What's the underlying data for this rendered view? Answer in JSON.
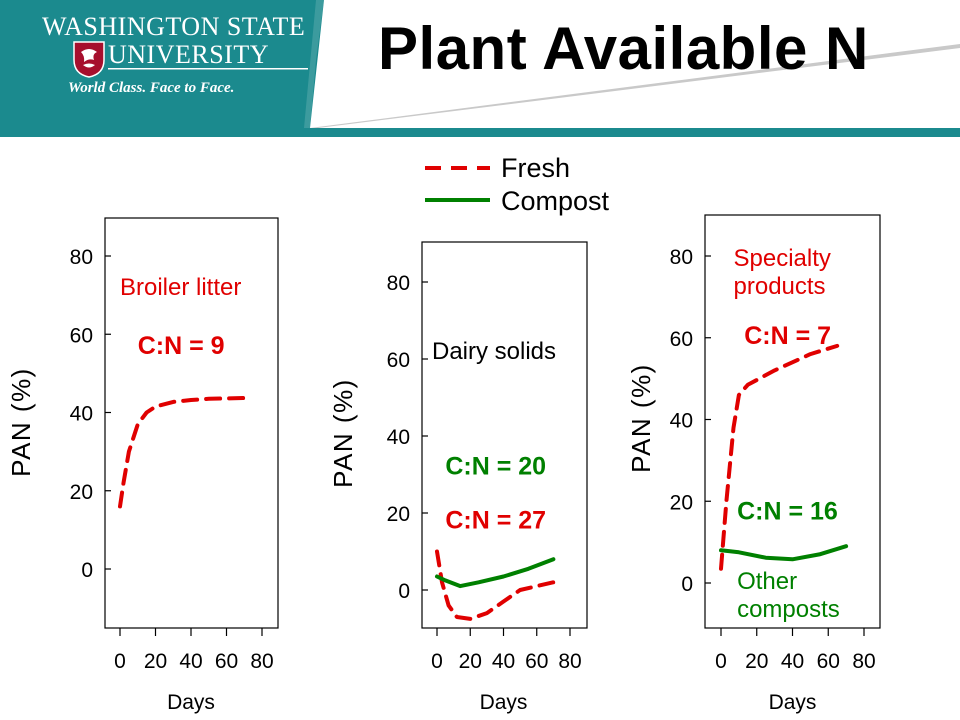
{
  "header": {
    "title": "Plant Available N",
    "logo_line1": "Washington State",
    "logo_line2": "University",
    "logo_tagline": "World Class. Face to Face."
  },
  "legend": {
    "entries": [
      {
        "label": "Fresh",
        "color": "#e00000",
        "style": "dashed"
      },
      {
        "label": "Compost",
        "color": "#008000",
        "style": "solid"
      }
    ]
  },
  "colors": {
    "fresh": "#e00000",
    "compost": "#008000",
    "teal": "#1b8a8e",
    "cream": "#f2ede0"
  },
  "chart_data": [
    {
      "type": "line",
      "xlabel": "Days",
      "ylabel": "PAN (%)",
      "xlim": [
        0,
        80
      ],
      "ylim": [
        -15,
        90
      ],
      "xticks": [
        0,
        20,
        40,
        60,
        80
      ],
      "yticks": [
        0,
        20,
        40,
        60,
        80
      ],
      "annotations": [
        {
          "text": "Broiler litter",
          "color": "#e00000",
          "weight": "normal",
          "x": 0,
          "y": 70,
          "anchor": "start",
          "lines": [
            "Broiler litter"
          ]
        },
        {
          "text": "C:N = 9",
          "color": "#e00000",
          "weight": "bold",
          "x": 10,
          "y": 55,
          "anchor": "start",
          "lines": [
            "C:N = 9"
          ]
        }
      ],
      "series": [
        {
          "key": "fresh",
          "x": [
            0,
            2,
            5,
            10,
            15,
            20,
            30,
            40,
            50,
            60,
            70
          ],
          "y": [
            16,
            22,
            30,
            37,
            40,
            41.5,
            42.7,
            43.2,
            43.5,
            43.6,
            43.7
          ]
        }
      ]
    },
    {
      "type": "line",
      "xlabel": "Days",
      "ylabel": "PAN (%)",
      "xlim": [
        0,
        80
      ],
      "ylim": [
        -10,
        90
      ],
      "xticks": [
        0,
        20,
        40,
        60,
        80
      ],
      "yticks": [
        0,
        20,
        40,
        60,
        80
      ],
      "annotations": [
        {
          "text": "Dairy solids",
          "color": "#000000",
          "weight": "normal",
          "x": -3,
          "y": 60,
          "anchor": "start",
          "lines": [
            "Dairy solids"
          ]
        },
        {
          "text": "C:N = 20",
          "color": "#008000",
          "weight": "bold",
          "x": 5,
          "y": 30,
          "anchor": "start",
          "lines": [
            "C:N = 20"
          ]
        },
        {
          "text": "C:N = 27",
          "color": "#e00000",
          "weight": "bold",
          "x": 5,
          "y": 16,
          "anchor": "start",
          "lines": [
            "C:N = 27"
          ]
        }
      ],
      "series": [
        {
          "key": "fresh",
          "x": [
            0,
            3,
            7,
            12,
            20,
            30,
            40,
            50,
            60,
            70
          ],
          "y": [
            10,
            2,
            -4,
            -7,
            -7.5,
            -6,
            -3,
            0,
            1,
            2
          ]
        },
        {
          "key": "compost",
          "x": [
            0,
            5,
            14,
            25,
            40,
            55,
            70
          ],
          "y": [
            3.5,
            2.5,
            1,
            2,
            3.5,
            5.5,
            8
          ]
        }
      ]
    },
    {
      "type": "line",
      "xlabel": "Days",
      "ylabel": "PAN (%)",
      "xlim": [
        0,
        80
      ],
      "ylim": [
        -10,
        90
      ],
      "xticks": [
        0,
        20,
        40,
        60,
        80
      ],
      "yticks": [
        0,
        20,
        40,
        60,
        80
      ],
      "annotations": [
        {
          "text": "Specialty products",
          "color": "#e00000",
          "weight": "normal",
          "x": 7,
          "y": 77.5,
          "anchor": "start",
          "lines": [
            "Specialty",
            "products"
          ]
        },
        {
          "text": "C:N = 7",
          "color": "#e00000",
          "weight": "bold",
          "x": 13,
          "y": 58.5,
          "anchor": "start",
          "lines": [
            "C:N = 7"
          ]
        },
        {
          "text": "C:N = 16",
          "color": "#008000",
          "weight": "bold",
          "x": 9,
          "y": 15.5,
          "anchor": "start",
          "lines": [
            "C:N = 16"
          ]
        },
        {
          "text": "Other composts",
          "color": "#008000",
          "weight": "normal",
          "x": 9,
          "y": -1.5,
          "anchor": "start",
          "lines": [
            "Other",
            "composts"
          ]
        }
      ],
      "series": [
        {
          "key": "fresh",
          "x": [
            0,
            3,
            7,
            10,
            15,
            30,
            50,
            65
          ],
          "y": [
            3.5,
            20,
            38,
            46,
            48.5,
            52,
            56,
            58
          ]
        },
        {
          "key": "compost",
          "x": [
            0,
            10,
            25,
            40,
            55,
            70
          ],
          "y": [
            8,
            7.5,
            6.2,
            5.8,
            7,
            9
          ]
        }
      ]
    }
  ]
}
